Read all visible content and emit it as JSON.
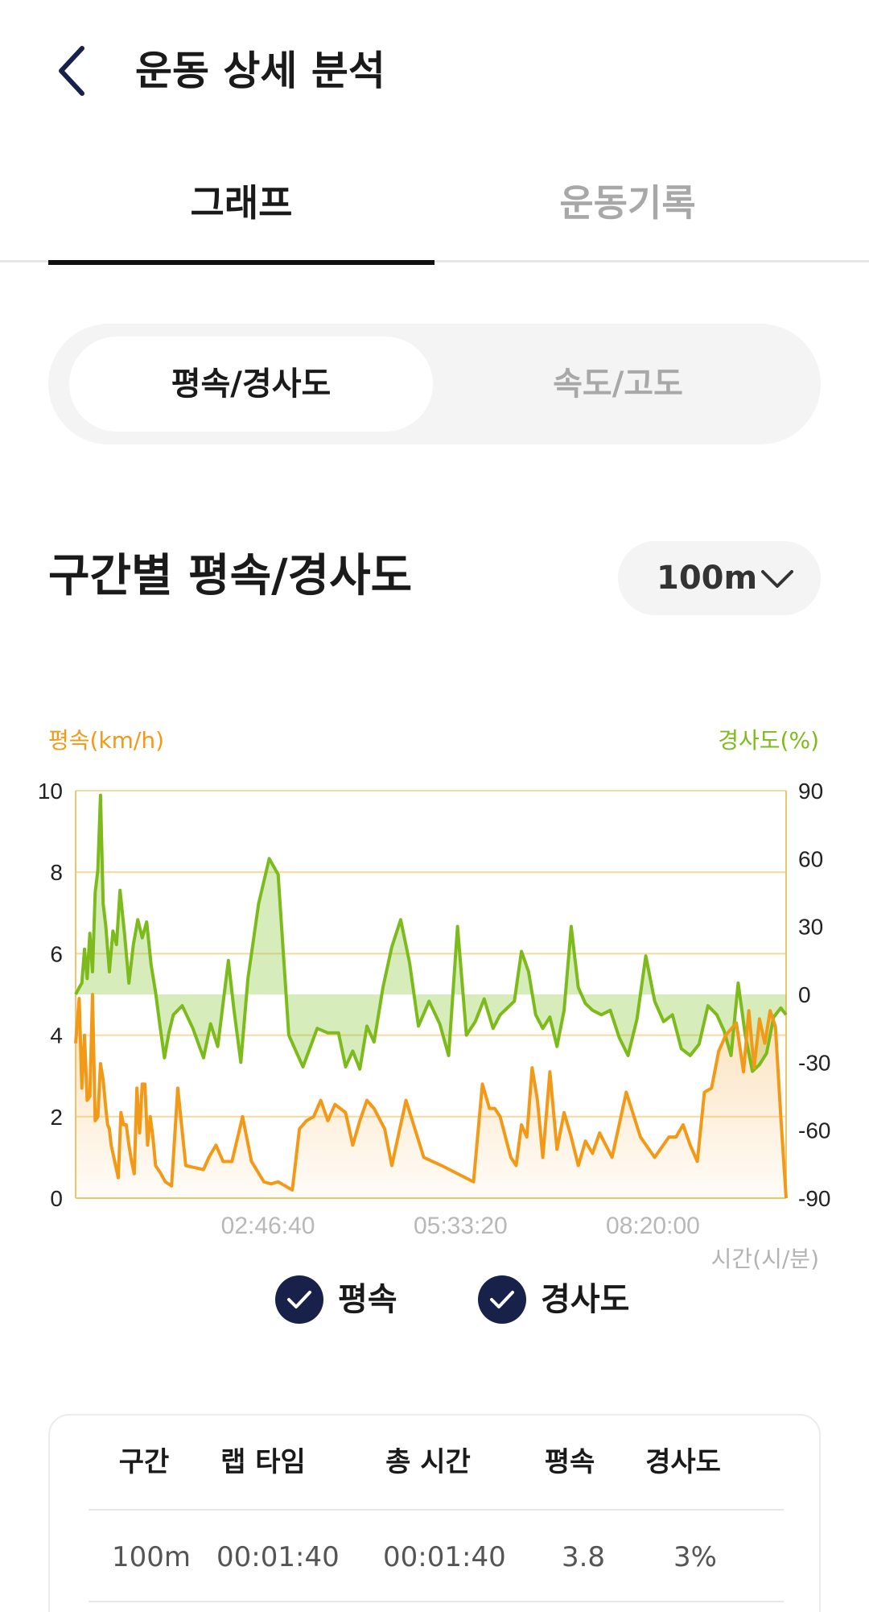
{
  "header": {
    "title": "운동 상세 분석",
    "back_icon": "chevron-left-icon"
  },
  "tabs": [
    {
      "label": "그래프",
      "active": true
    },
    {
      "label": "운동기록",
      "active": false
    }
  ],
  "segment": [
    {
      "label": "평속/경사도",
      "active": true
    },
    {
      "label": "속도/고도",
      "active": false
    }
  ],
  "section": {
    "title": "구간별 평속/경사도",
    "interval": "100m"
  },
  "colors": {
    "speed": "#f29a17",
    "slope": "#7dbb1c",
    "check_bg": "#17214a"
  },
  "chart_data": {
    "type": "line",
    "ylabel": "평속(km/h)",
    "y2label": "경사도(%)",
    "xlabel": "시간(시/분)",
    "ylim": [
      0,
      10
    ],
    "y2lim": [
      -90,
      90
    ],
    "yticks": [
      "10",
      "8",
      "6",
      "4",
      "2",
      "0"
    ],
    "y2ticks": [
      "90",
      "60",
      "30",
      "0",
      "-30",
      "-60",
      "-90"
    ],
    "xticks": [
      "02:46:40",
      "05:33:20",
      "08:20:00"
    ],
    "grid": true,
    "series": [
      {
        "name": "평속",
        "axis": "left",
        "x": [
          0.0,
          0.2,
          0.35,
          0.5,
          0.65,
          0.8,
          0.95,
          1.1,
          1.25,
          1.4,
          1.55,
          1.7,
          1.8,
          1.9,
          2.0,
          2.1,
          2.25,
          2.4,
          2.55,
          2.7,
          2.85,
          3.0,
          3.15,
          3.3,
          3.45,
          3.6,
          3.75,
          3.9,
          4.05,
          4.2,
          4.35,
          4.5,
          4.65,
          4.8,
          5.05,
          5.4,
          5.75,
          6.2,
          7.2,
          7.5,
          7.9,
          8.3,
          8.8,
          9.4,
          9.9,
          10.6,
          11.0,
          11.4,
          11.8,
          12.2,
          12.6,
          13.0,
          13.4,
          13.8,
          14.2,
          14.6,
          15.2,
          15.6,
          16.0,
          16.4,
          16.8,
          17.4,
          17.8,
          18.6,
          19.6,
          20.6,
          22.4,
          22.9,
          23.3,
          23.6,
          23.9,
          24.2,
          24.5,
          24.8,
          25.1,
          25.4,
          25.7,
          26.0,
          26.3,
          26.7,
          27.1,
          27.5,
          27.9,
          28.3,
          28.7,
          29.1,
          29.5,
          30.2,
          31.0,
          31.8,
          32.6,
          33.4,
          33.8,
          34.2,
          34.6,
          35.0,
          35.4,
          35.8,
          36.2,
          36.6,
          37.2,
          37.6,
          37.9,
          38.2,
          38.5,
          38.8,
          39.1,
          39.4,
          39.7,
          40.0
        ],
        "values": [
          3.8,
          4.9,
          2.7,
          4.0,
          2.4,
          2.5,
          5.0,
          1.9,
          2.0,
          3.3,
          2.9,
          2.2,
          1.8,
          1.7,
          1.3,
          1.1,
          0.8,
          0.5,
          2.1,
          1.8,
          1.8,
          1.3,
          0.9,
          0.6,
          2.7,
          1.6,
          2.8,
          2.8,
          1.3,
          2.0,
          1.5,
          0.8,
          0.7,
          0.6,
          0.4,
          0.3,
          2.7,
          0.8,
          0.7,
          1.0,
          1.3,
          0.9,
          0.9,
          2.0,
          0.9,
          0.4,
          0.35,
          0.4,
          0.3,
          0.2,
          1.7,
          1.9,
          2.0,
          2.4,
          1.9,
          2.3,
          2.1,
          1.3,
          1.9,
          2.4,
          2.2,
          1.7,
          0.8,
          2.4,
          1.0,
          0.8,
          0.4,
          2.8,
          2.2,
          2.2,
          2.0,
          1.5,
          1.0,
          0.8,
          1.8,
          1.5,
          3.2,
          2.4,
          1.0,
          3.1,
          1.2,
          2.1,
          1.5,
          0.8,
          1.4,
          1.1,
          1.6,
          1.0,
          2.6,
          1.5,
          1.0,
          1.5,
          1.5,
          1.8,
          1.3,
          0.9,
          2.6,
          2.7,
          3.6,
          4.0,
          4.3,
          3.1,
          4.6,
          3.2,
          4.4,
          3.8,
          4.6,
          4.2,
          2.0,
          0.0
        ]
      },
      {
        "name": "경사도",
        "axis": "right",
        "x": [
          0.0,
          0.2,
          0.35,
          0.5,
          0.65,
          0.8,
          0.95,
          1.1,
          1.25,
          1.4,
          1.55,
          1.7,
          1.9,
          2.1,
          2.3,
          2.5,
          2.75,
          3.0,
          3.25,
          3.5,
          3.75,
          4.0,
          4.25,
          4.5,
          4.75,
          5.0,
          5.25,
          5.5,
          6.0,
          6.6,
          7.2,
          7.6,
          8.0,
          8.3,
          8.6,
          8.9,
          9.3,
          9.7,
          10.3,
          10.9,
          11.4,
          12.0,
          12.8,
          13.6,
          14.2,
          14.8,
          15.2,
          15.6,
          16.0,
          16.4,
          16.8,
          17.3,
          17.8,
          18.3,
          18.8,
          19.3,
          19.9,
          20.5,
          21.0,
          21.5,
          22.0,
          22.5,
          23.0,
          23.5,
          23.9,
          24.3,
          24.7,
          25.1,
          25.5,
          25.9,
          26.3,
          26.7,
          27.1,
          27.5,
          27.9,
          28.3,
          28.7,
          29.1,
          29.6,
          30.1,
          30.6,
          31.1,
          31.6,
          32.1,
          32.6,
          33.1,
          33.6,
          34.1,
          34.6,
          35.1,
          35.6,
          36.1,
          36.5,
          36.9,
          37.3,
          37.7,
          38.1,
          38.5,
          38.9,
          39.3,
          39.7,
          40.0
        ],
        "values": [
          0,
          3,
          5,
          20,
          7,
          27,
          10,
          45,
          55,
          88,
          40,
          30,
          10,
          28,
          22,
          46,
          27,
          5,
          22,
          33,
          25,
          32,
          13,
          1,
          -14,
          -28,
          -17,
          -9,
          -5,
          -15,
          -28,
          -13,
          -23,
          -4,
          15,
          -6,
          -30,
          7,
          40,
          60,
          53,
          -18,
          -32,
          -15,
          -17,
          -17,
          -32,
          -25,
          -33,
          -14,
          -21,
          3,
          21,
          33,
          14,
          -14,
          -3,
          -13,
          -27,
          30,
          -18,
          -12,
          -2,
          -15,
          -9,
          -6,
          -3,
          19,
          10,
          -9,
          -15,
          -10,
          -23,
          -7,
          30,
          3,
          -4,
          -7,
          -9,
          -7,
          -19,
          -27,
          -11,
          17,
          -3,
          -12,
          -9,
          -24,
          -27,
          -22,
          -5,
          -9,
          -16,
          -27,
          5,
          -18,
          -34,
          -31,
          -26,
          -10,
          -6,
          -9
        ]
      }
    ]
  },
  "legend": [
    {
      "label": "평속",
      "checked": true
    },
    {
      "label": "경사도",
      "checked": true
    }
  ],
  "table": {
    "headers": [
      "구간",
      "랩 타임",
      "총 시간",
      "평속",
      "경사도"
    ],
    "rows": [
      [
        "100m",
        "00:01:40",
        "00:01:40",
        "3.8",
        "3%"
      ]
    ]
  }
}
